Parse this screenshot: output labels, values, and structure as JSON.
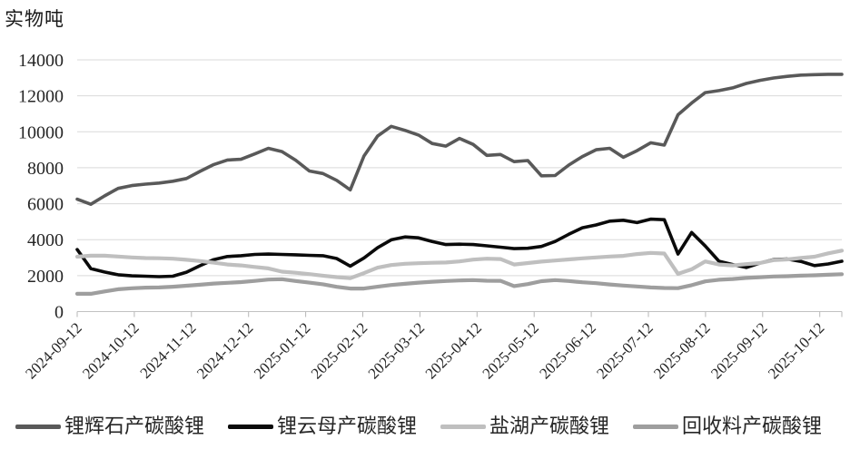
{
  "chart_data": {
    "type": "line",
    "unit_label": "实物吨",
    "grid": true,
    "legend_position": "bottom",
    "y_axis": {
      "min": 0,
      "max": 14000,
      "step": 2000,
      "tick_labels": [
        "0",
        "2000",
        "4000",
        "6000",
        "8000",
        "10000",
        "12000",
        "14000"
      ]
    },
    "x_tick_labels": [
      "2024-09-12",
      "2024-10-12",
      "2024-11-12",
      "2024-12-12",
      "2025-01-12",
      "2025-02-12",
      "2025-03-12",
      "2025-04-12",
      "2025-05-12",
      "2025-06-12",
      "2025-07-12",
      "2025-08-12",
      "2025-09-12",
      "2025-10-12"
    ],
    "series": [
      {
        "id": "spodumene",
        "name": "锂辉石产碳酸锂",
        "color": "#595959",
        "values": [
          6250,
          5970,
          6430,
          6850,
          7010,
          7090,
          7150,
          7250,
          7400,
          7800,
          8180,
          8430,
          8470,
          8770,
          9080,
          8900,
          8420,
          7820,
          7680,
          7300,
          6770,
          8650,
          9760,
          10300,
          10080,
          9820,
          9350,
          9200,
          9630,
          9300,
          8690,
          8740,
          8340,
          8400,
          7550,
          7570,
          8150,
          8620,
          9000,
          9080,
          8580,
          8950,
          9390,
          9260,
          10950,
          11600,
          12180,
          12290,
          12440,
          12690,
          12860,
          12990,
          13080,
          13150,
          13180,
          13200,
          13200
        ]
      },
      {
        "id": "lepidolite",
        "name": "锂云母产碳酸锂",
        "color": "#0a0a0a",
        "values": [
          3450,
          2390,
          2200,
          2050,
          1990,
          1970,
          1940,
          1970,
          2190,
          2555,
          2890,
          3060,
          3110,
          3180,
          3200,
          3180,
          3160,
          3130,
          3110,
          2950,
          2530,
          2980,
          3550,
          3990,
          4150,
          4100,
          3900,
          3730,
          3750,
          3730,
          3660,
          3580,
          3500,
          3520,
          3620,
          3900,
          4300,
          4660,
          4820,
          5030,
          5080,
          4950,
          5140,
          5110,
          3200,
          4400,
          3650,
          2800,
          2620,
          2450,
          2700,
          2890,
          2920,
          2790,
          2560,
          2650,
          2800
        ]
      },
      {
        "id": "salt-lake",
        "name": "盐湖产碳酸锂",
        "color": "#bfbfbf",
        "values": [
          3050,
          3110,
          3110,
          3060,
          3010,
          2975,
          2965,
          2940,
          2880,
          2810,
          2720,
          2620,
          2570,
          2480,
          2400,
          2220,
          2160,
          2085,
          2000,
          1915,
          1855,
          2140,
          2440,
          2590,
          2660,
          2690,
          2715,
          2730,
          2790,
          2890,
          2940,
          2920,
          2620,
          2700,
          2780,
          2840,
          2900,
          2960,
          3010,
          3060,
          3100,
          3200,
          3265,
          3230,
          2100,
          2350,
          2790,
          2620,
          2570,
          2640,
          2700,
          2860,
          2900,
          2980,
          3050,
          3240,
          3390
        ]
      },
      {
        "id": "recycled",
        "name": "回收料产碳酸锂",
        "color": "#9e9e9e",
        "values": [
          990,
          990,
          1120,
          1240,
          1295,
          1330,
          1340,
          1380,
          1440,
          1495,
          1560,
          1600,
          1640,
          1705,
          1780,
          1800,
          1700,
          1610,
          1520,
          1375,
          1280,
          1280,
          1380,
          1480,
          1545,
          1610,
          1660,
          1700,
          1730,
          1750,
          1715,
          1710,
          1420,
          1530,
          1690,
          1750,
          1700,
          1630,
          1580,
          1510,
          1450,
          1400,
          1340,
          1310,
          1300,
          1470,
          1680,
          1770,
          1810,
          1870,
          1910,
          1950,
          1970,
          2000,
          2020,
          2050,
          2080
        ]
      }
    ]
  }
}
